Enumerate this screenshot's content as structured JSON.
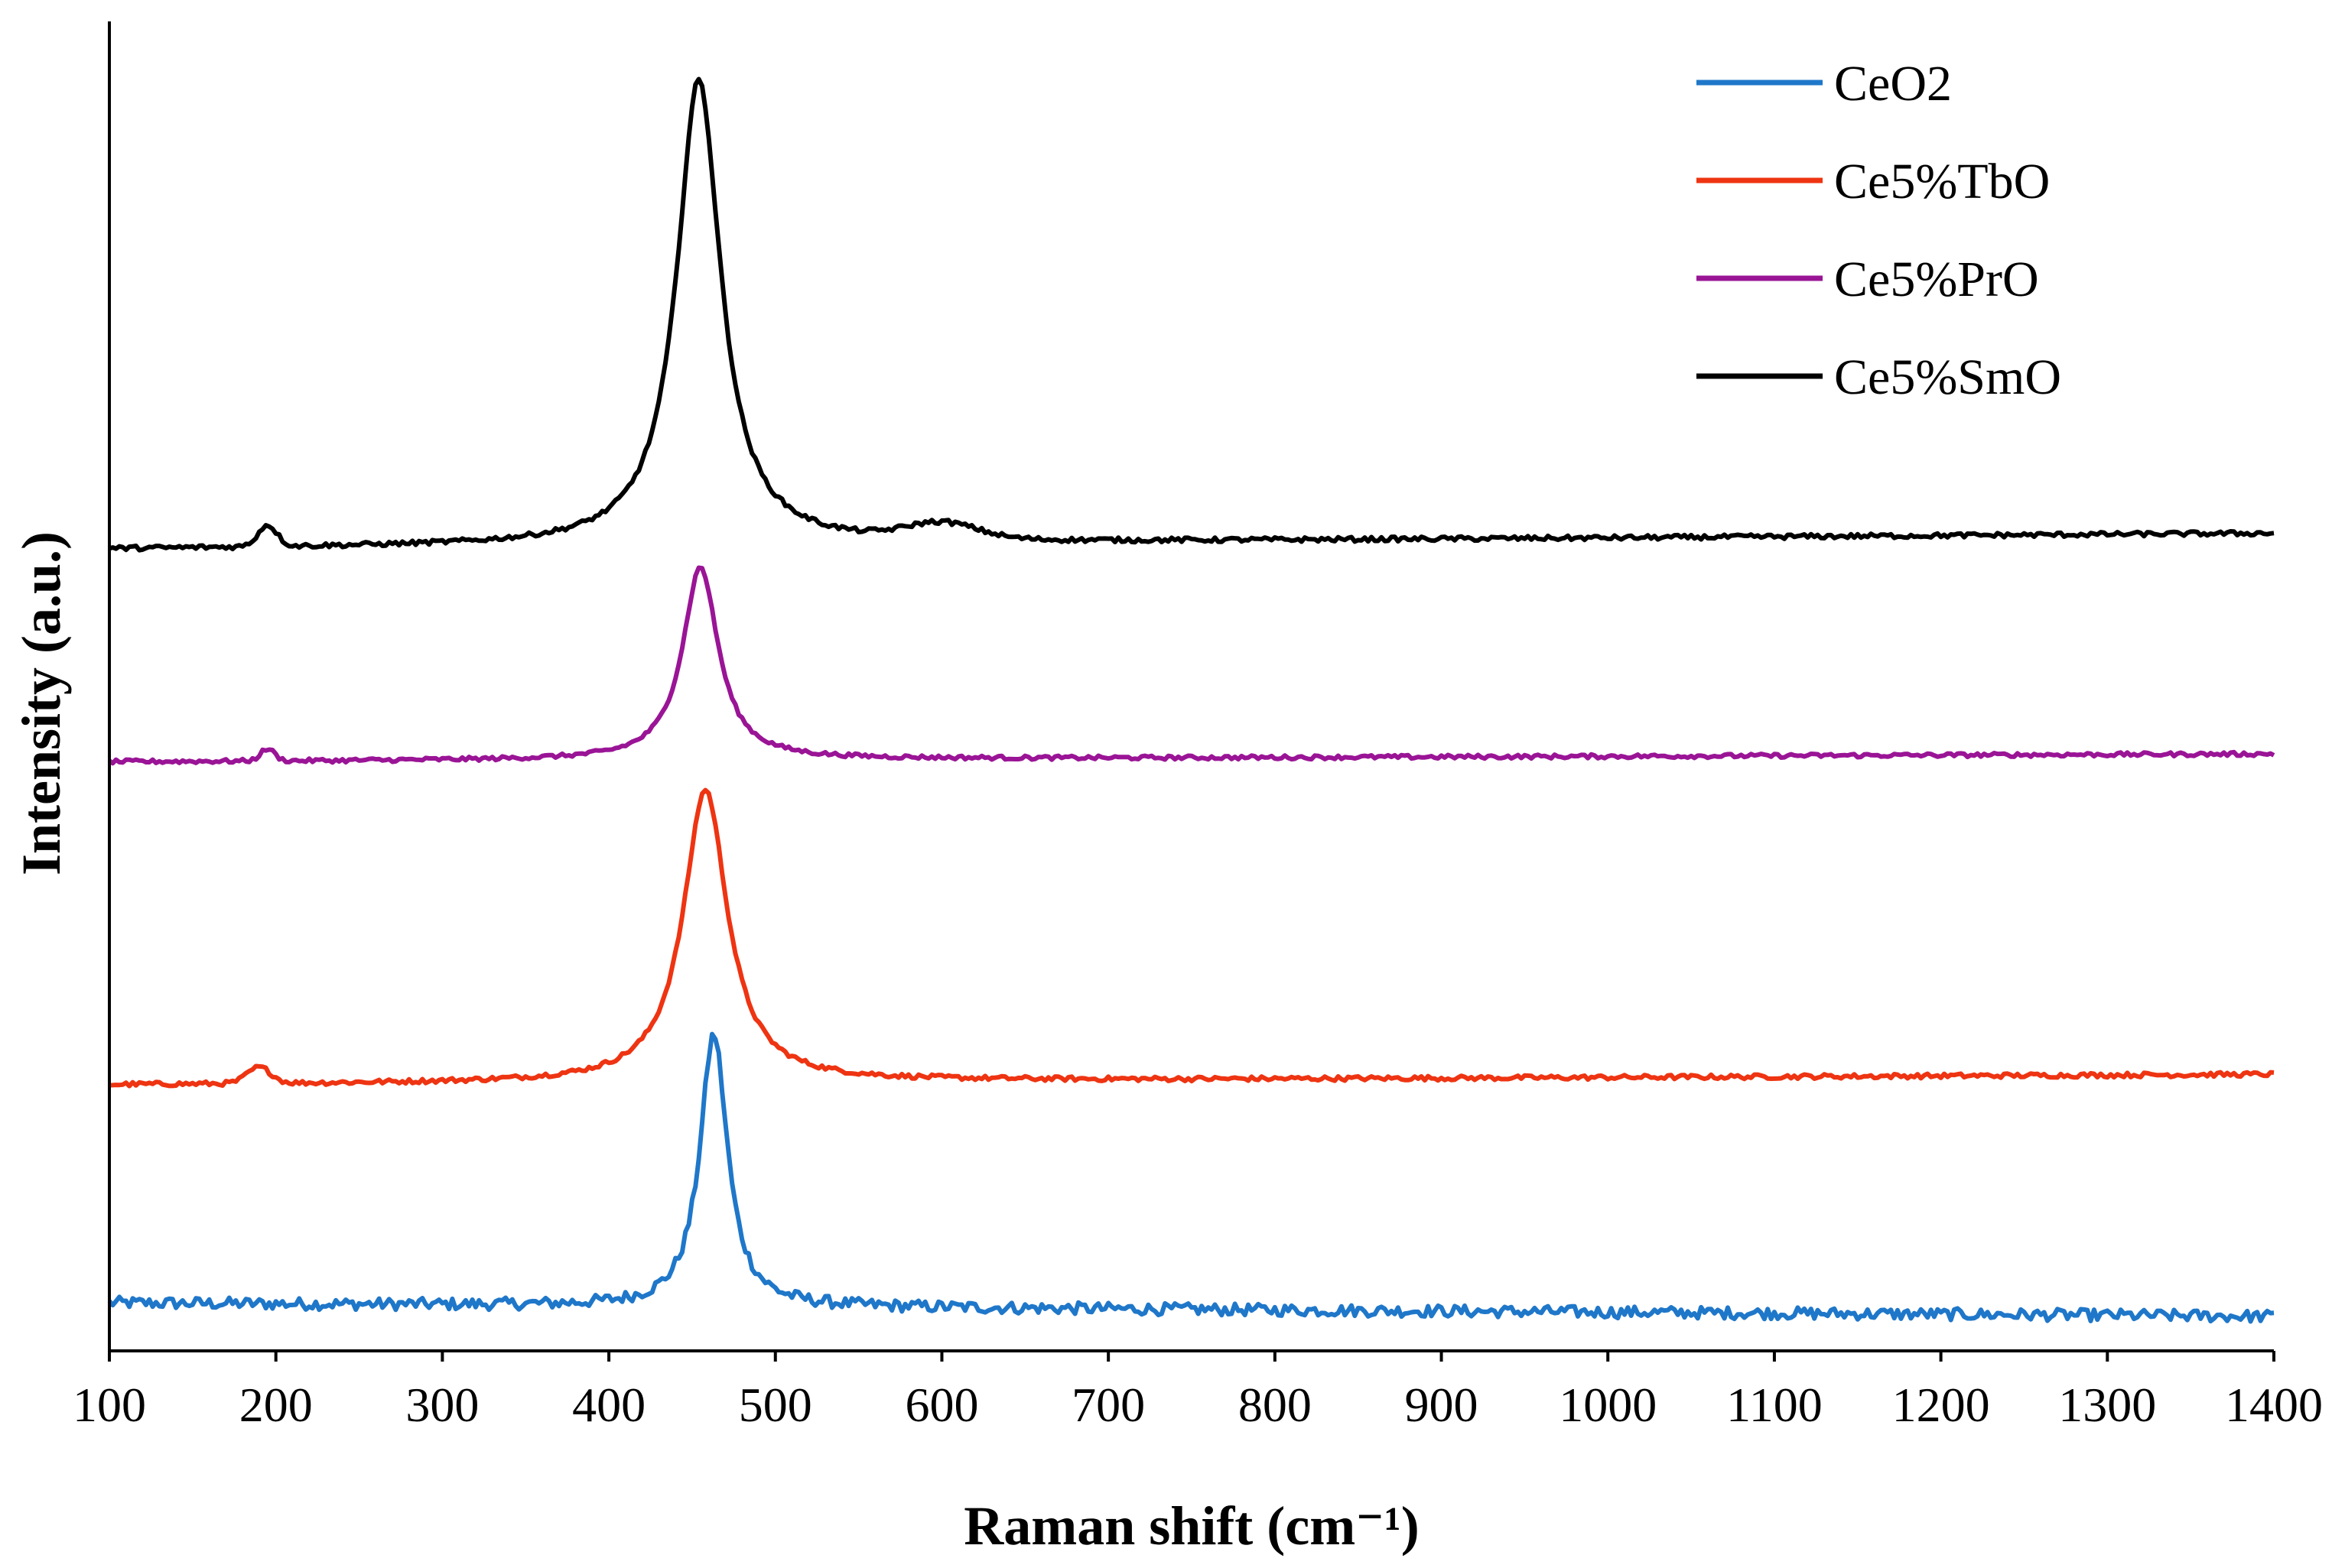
{
  "chart_data": {
    "type": "line",
    "title": "",
    "xlabel": "Raman shift (cm⁻¹)",
    "ylabel": "Intensity (a.u.)",
    "xlim": [
      100,
      1400
    ],
    "ylim": [
      0,
      100
    ],
    "xticks": [
      100,
      200,
      300,
      400,
      500,
      600,
      700,
      800,
      900,
      1000,
      1100,
      1200,
      1300,
      1400
    ],
    "yticks_shown": false,
    "grid": false,
    "legend_position": "top-right",
    "series": [
      {
        "name": "CeO2",
        "color": "#1f77c9",
        "offset": 1.0,
        "baseline_start": 2.6,
        "baseline_end": 1.6,
        "peak_center": 463,
        "peak_height": 20.5,
        "peak_width": 10,
        "noise": 0.9,
        "bumps": []
      },
      {
        "name": "Ce5%TbO",
        "color": "#ee3412",
        "offset": 20.0,
        "baseline_start": 0.0,
        "baseline_end": 0.8,
        "peak_center": 458,
        "peak_height": 22.0,
        "peak_width": 16,
        "noise": 0.35,
        "bumps": [
          [
            190,
            1.2,
            10
          ]
        ]
      },
      {
        "name": "Ce5%PrO",
        "color": "#9a1496",
        "offset": 44.3,
        "baseline_start": 0.0,
        "baseline_end": 0.6,
        "peak_center": 455,
        "peak_height": 14.5,
        "peak_width": 13,
        "noise": 0.3,
        "bumps": [
          [
            195,
            0.9,
            6
          ]
        ]
      },
      {
        "name": "Ce5%SmO",
        "color": "#000000",
        "offset": 60.3,
        "baseline_start": 0.0,
        "baseline_end": 1.2,
        "peak_center": 454,
        "peak_height": 35.0,
        "peak_width": 16,
        "noise": 0.35,
        "bumps": [
          [
            195,
            1.6,
            8
          ],
          [
            600,
            1.2,
            30
          ]
        ]
      }
    ]
  }
}
